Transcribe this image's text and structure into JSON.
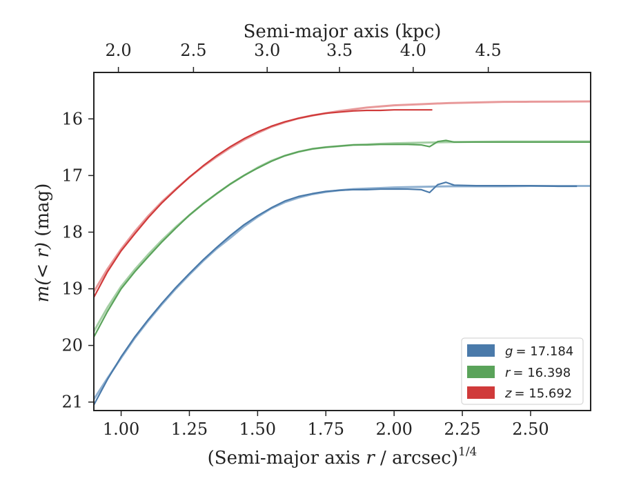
{
  "chart_data": {
    "type": "line",
    "xlabel": "(Semi-major axis r / arcsec)",
    "xlabel_var": "r",
    "xlabel_pre": "(Semi-major axis ",
    "xlabel_post": " / arcsec)",
    "xlabel_exp": "1/4",
    "top_xlabel": "Semi-major axis (kpc)",
    "ylabel_pre": "m",
    "ylabel_mid": "(< r)",
    "ylabel_post": " (mag)",
    "xlim": [
      0.9,
      2.72
    ],
    "ylim": [
      21.15,
      15.18
    ],
    "y_inverted": true,
    "x_ticks": [
      1.0,
      1.25,
      1.5,
      1.75,
      2.0,
      2.25,
      2.5
    ],
    "x_tick_labels": [
      "1.00",
      "1.25",
      "1.50",
      "1.75",
      "2.00",
      "2.25",
      "2.50"
    ],
    "y_ticks": [
      16,
      17,
      18,
      19,
      20,
      21
    ],
    "y_tick_labels": [
      "16",
      "17",
      "18",
      "19",
      "20",
      "21"
    ],
    "top_x_ticks_kpc": [
      2.0,
      2.5,
      3.0,
      3.5,
      4.0,
      4.5
    ],
    "top_x_tick_labels": [
      "2.0",
      "2.5",
      "3.0",
      "3.5",
      "4.0",
      "4.5"
    ],
    "top_x_tick_positions": [
      0.99,
      1.265,
      1.535,
      1.8,
      2.07,
      2.345
    ],
    "legend_position": "lower-right",
    "series": [
      {
        "name": "g",
        "legend_var": "g",
        "legend_value": "= 17.184",
        "color": "#4a7aaa",
        "fit_color": "#8fb0d0",
        "asymptote": 17.184,
        "fit_x": [
          0.9,
          0.95,
          1.0,
          1.05,
          1.1,
          1.15,
          1.2,
          1.25,
          1.3,
          1.35,
          1.4,
          1.45,
          1.5,
          1.55,
          1.6,
          1.65,
          1.7,
          1.75,
          1.8,
          1.85,
          1.9,
          1.95,
          2.0,
          2.1,
          2.2,
          2.3,
          2.4,
          2.5,
          2.6,
          2.72
        ],
        "fit_y": [
          20.95,
          20.58,
          20.22,
          19.87,
          19.56,
          19.27,
          19.0,
          18.75,
          18.51,
          18.29,
          18.1,
          17.9,
          17.73,
          17.58,
          17.47,
          17.39,
          17.33,
          17.29,
          17.26,
          17.24,
          17.23,
          17.22,
          17.21,
          17.2,
          17.19,
          17.19,
          17.19,
          17.185,
          17.185,
          17.184
        ],
        "data_x": [
          0.9,
          0.95,
          1.0,
          1.05,
          1.1,
          1.15,
          1.2,
          1.25,
          1.3,
          1.35,
          1.4,
          1.45,
          1.5,
          1.55,
          1.6,
          1.65,
          1.7,
          1.75,
          1.8,
          1.85,
          1.9,
          1.95,
          2.0,
          2.05,
          2.1,
          2.13,
          2.16,
          2.19,
          2.22,
          2.3,
          2.4,
          2.5,
          2.6,
          2.67
        ],
        "data_y": [
          21.05,
          20.6,
          20.2,
          19.85,
          19.54,
          19.25,
          18.98,
          18.73,
          18.49,
          18.27,
          18.06,
          17.87,
          17.71,
          17.57,
          17.45,
          17.37,
          17.32,
          17.28,
          17.26,
          17.25,
          17.25,
          17.24,
          17.24,
          17.24,
          17.25,
          17.3,
          17.16,
          17.12,
          17.17,
          17.18,
          17.18,
          17.18,
          17.19,
          17.19
        ]
      },
      {
        "name": "r",
        "legend_var": "r",
        "legend_value": "= 16.398",
        "color": "#5aa35a",
        "fit_color": "#a5cfa5",
        "asymptote": 16.398,
        "fit_x": [
          0.9,
          0.95,
          1.0,
          1.05,
          1.1,
          1.15,
          1.2,
          1.25,
          1.3,
          1.35,
          1.4,
          1.45,
          1.5,
          1.55,
          1.6,
          1.65,
          1.7,
          1.75,
          1.8,
          1.85,
          1.9,
          1.95,
          2.0,
          2.1,
          2.2,
          2.3,
          2.4,
          2.5,
          2.6,
          2.72
        ],
        "fit_y": [
          19.75,
          19.33,
          18.96,
          18.66,
          18.39,
          18.14,
          17.91,
          17.7,
          17.5,
          17.32,
          17.15,
          17.0,
          16.86,
          16.74,
          16.65,
          16.58,
          16.53,
          16.5,
          16.48,
          16.46,
          16.45,
          16.44,
          16.43,
          16.42,
          16.41,
          16.405,
          16.4,
          16.4,
          16.399,
          16.398
        ],
        "data_x": [
          0.9,
          0.95,
          1.0,
          1.05,
          1.1,
          1.15,
          1.2,
          1.25,
          1.3,
          1.35,
          1.4,
          1.45,
          1.5,
          1.55,
          1.6,
          1.65,
          1.7,
          1.75,
          1.8,
          1.85,
          1.9,
          1.95,
          2.0,
          2.05,
          2.1,
          2.13,
          2.16,
          2.19,
          2.22,
          2.3,
          2.4,
          2.5,
          2.6,
          2.72
        ],
        "data_y": [
          19.85,
          19.4,
          19.0,
          18.7,
          18.43,
          18.17,
          17.93,
          17.7,
          17.5,
          17.32,
          17.15,
          17.0,
          16.87,
          16.75,
          16.65,
          16.58,
          16.53,
          16.5,
          16.48,
          16.46,
          16.46,
          16.45,
          16.45,
          16.45,
          16.46,
          16.49,
          16.4,
          16.38,
          16.41,
          16.41,
          16.41,
          16.41,
          16.41,
          16.41
        ]
      },
      {
        "name": "z",
        "legend_var": "z",
        "legend_value": "= 15.692",
        "color": "#d03a3a",
        "fit_color": "#e8999a",
        "asymptote": 15.692,
        "fit_x": [
          0.9,
          0.95,
          1.0,
          1.05,
          1.1,
          1.15,
          1.2,
          1.25,
          1.3,
          1.35,
          1.4,
          1.45,
          1.5,
          1.55,
          1.6,
          1.65,
          1.7,
          1.75,
          1.8,
          1.85,
          1.9,
          1.95,
          2.0,
          2.1,
          2.2,
          2.3,
          2.4,
          2.5,
          2.6,
          2.72
        ],
        "fit_y": [
          19.05,
          18.65,
          18.3,
          17.99,
          17.71,
          17.46,
          17.24,
          17.03,
          16.84,
          16.67,
          16.51,
          16.37,
          16.25,
          16.14,
          16.06,
          15.99,
          15.94,
          15.9,
          15.86,
          15.83,
          15.8,
          15.78,
          15.76,
          15.74,
          15.72,
          15.71,
          15.7,
          15.697,
          15.694,
          15.692
        ],
        "data_x": [
          0.9,
          0.95,
          1.0,
          1.05,
          1.1,
          1.15,
          1.2,
          1.25,
          1.3,
          1.35,
          1.4,
          1.45,
          1.5,
          1.55,
          1.6,
          1.65,
          1.7,
          1.75,
          1.8,
          1.85,
          1.9,
          1.95,
          2.0,
          2.05,
          2.1,
          2.14
        ],
        "data_y": [
          19.15,
          18.7,
          18.33,
          18.03,
          17.74,
          17.48,
          17.25,
          17.03,
          16.83,
          16.65,
          16.49,
          16.35,
          16.23,
          16.13,
          16.05,
          15.99,
          15.94,
          15.9,
          15.88,
          15.86,
          15.85,
          15.85,
          15.84,
          15.84,
          15.84,
          15.84
        ]
      }
    ]
  }
}
